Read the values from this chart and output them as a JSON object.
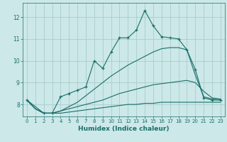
{
  "xlabel": "Humidex (Indice chaleur)",
  "background_color": "#cce8e8",
  "grid_color": "#aacccc",
  "line_color": "#1a6e6a",
  "xlim": [
    -0.5,
    23.5
  ],
  "ylim": [
    7.45,
    12.65
  ],
  "xticks": [
    0,
    1,
    2,
    3,
    4,
    5,
    6,
    7,
    8,
    9,
    10,
    11,
    12,
    13,
    14,
    15,
    16,
    17,
    18,
    19,
    20,
    21,
    22,
    23
  ],
  "yticks": [
    8,
    9,
    10,
    11,
    12
  ],
  "lines": [
    {
      "x": [
        0,
        1,
        2,
        3,
        4,
        5,
        6,
        7,
        8,
        9,
        10,
        11,
        12,
        13,
        14,
        15,
        16,
        17,
        18,
        19,
        20,
        21,
        22,
        23
      ],
      "y": [
        8.2,
        7.8,
        7.6,
        7.6,
        7.6,
        7.65,
        7.7,
        7.75,
        7.8,
        7.85,
        7.9,
        7.95,
        8.0,
        8.0,
        8.05,
        8.05,
        8.1,
        8.1,
        8.1,
        8.1,
        8.1,
        8.1,
        8.1,
        8.1
      ],
      "marker": false
    },
    {
      "x": [
        0,
        1,
        2,
        3,
        4,
        5,
        6,
        7,
        8,
        9,
        10,
        11,
        12,
        13,
        14,
        15,
        16,
        17,
        18,
        19,
        20,
        21,
        22,
        23
      ],
      "y": [
        8.2,
        7.8,
        7.6,
        7.6,
        7.7,
        7.8,
        7.9,
        8.0,
        8.1,
        8.2,
        8.35,
        8.5,
        8.6,
        8.7,
        8.8,
        8.9,
        8.95,
        9.0,
        9.05,
        9.1,
        9.0,
        8.6,
        8.3,
        8.25
      ],
      "marker": false
    },
    {
      "x": [
        0,
        1,
        2,
        3,
        4,
        5,
        6,
        7,
        8,
        9,
        10,
        11,
        12,
        13,
        14,
        15,
        16,
        17,
        18,
        19,
        20,
        21,
        22,
        23
      ],
      "y": [
        8.2,
        7.8,
        7.6,
        7.6,
        7.7,
        7.9,
        8.1,
        8.4,
        8.7,
        9.0,
        9.3,
        9.55,
        9.8,
        10.0,
        10.2,
        10.4,
        10.55,
        10.6,
        10.6,
        10.5,
        9.35,
        8.35,
        8.25,
        8.2
      ],
      "marker": false
    },
    {
      "x": [
        0,
        2,
        3,
        4,
        5,
        6,
        7,
        8,
        9,
        10,
        11,
        12,
        13,
        14,
        15,
        16,
        17,
        18,
        19,
        20,
        21,
        22,
        23
      ],
      "y": [
        8.2,
        7.6,
        7.6,
        8.35,
        8.5,
        8.65,
        8.8,
        10.0,
        9.65,
        10.4,
        11.05,
        11.05,
        11.4,
        12.3,
        11.6,
        11.1,
        11.05,
        11.0,
        10.5,
        9.6,
        8.3,
        8.2,
        8.2
      ],
      "marker": true
    }
  ]
}
